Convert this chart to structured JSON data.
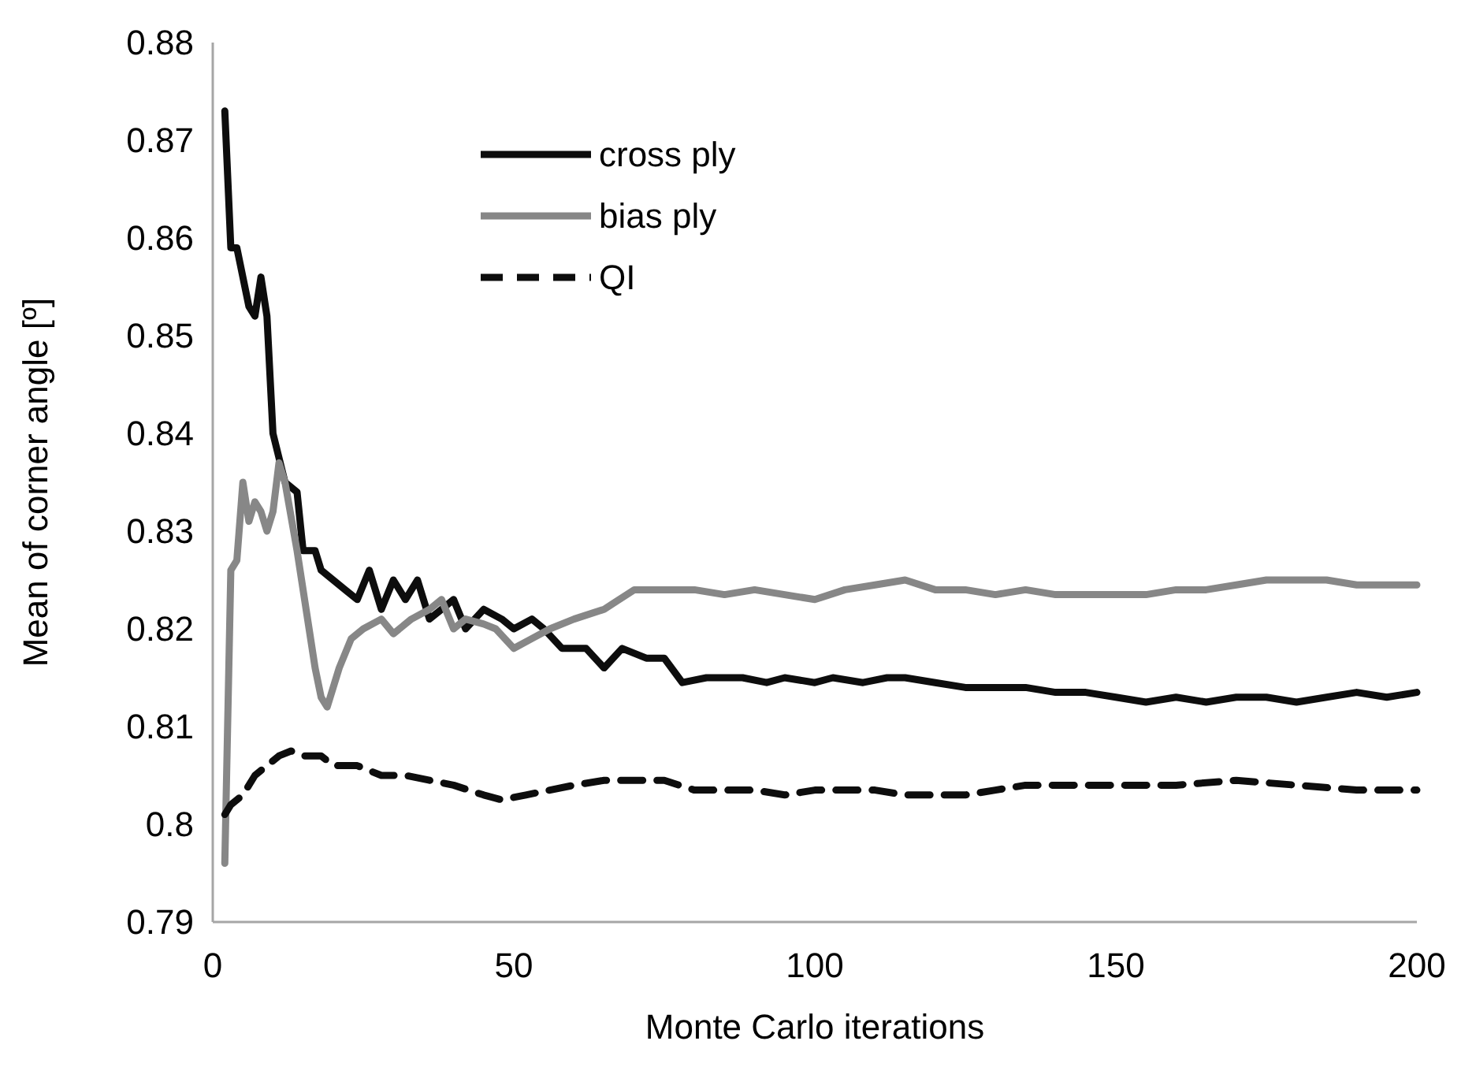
{
  "chart_data": {
    "type": "line",
    "xlabel": "Monte Carlo iterations",
    "ylabel": "Mean of corner angle [º]",
    "xlim": [
      0,
      200
    ],
    "xticks": [
      0,
      50,
      100,
      150,
      200
    ],
    "ylim": [
      0.79,
      0.88
    ],
    "yticks": [
      0.79,
      0.8,
      0.81,
      0.82,
      0.83,
      0.84,
      0.85,
      0.86,
      0.87,
      0.88
    ],
    "grid": false,
    "legend": "top left",
    "series": [
      {
        "name": "cross ply",
        "color": "#0d0d0d",
        "line_style": "solid",
        "x": [
          2,
          3,
          4,
          6,
          7,
          8,
          9,
          10,
          12,
          14,
          15,
          17,
          18,
          20,
          22,
          24,
          26,
          28,
          30,
          32,
          34,
          36,
          38,
          40,
          42,
          45,
          48,
          50,
          53,
          55,
          58,
          62,
          65,
          68,
          72,
          75,
          78,
          82,
          85,
          88,
          92,
          95,
          100,
          103,
          108,
          112,
          115,
          120,
          125,
          130,
          135,
          140,
          145,
          150,
          155,
          160,
          165,
          170,
          175,
          180,
          185,
          190,
          195,
          200
        ],
        "values": [
          0.873,
          0.859,
          0.859,
          0.853,
          0.852,
          0.856,
          0.852,
          0.84,
          0.835,
          0.834,
          0.828,
          0.828,
          0.826,
          0.825,
          0.824,
          0.823,
          0.826,
          0.822,
          0.825,
          0.823,
          0.825,
          0.821,
          0.822,
          0.823,
          0.82,
          0.822,
          0.821,
          0.82,
          0.821,
          0.82,
          0.818,
          0.818,
          0.816,
          0.818,
          0.817,
          0.817,
          0.8145,
          0.815,
          0.815,
          0.815,
          0.8145,
          0.815,
          0.8145,
          0.815,
          0.8145,
          0.815,
          0.815,
          0.8145,
          0.814,
          0.814,
          0.814,
          0.8135,
          0.8135,
          0.813,
          0.8125,
          0.813,
          0.8125,
          0.813,
          0.813,
          0.8125,
          0.813,
          0.8135,
          0.813,
          0.8135
        ]
      },
      {
        "name": "bias ply",
        "color": "#878787",
        "line_style": "solid",
        "x": [
          2,
          3,
          4,
          5,
          6,
          7,
          8,
          9,
          10,
          11,
          12,
          14,
          16,
          17,
          18,
          19,
          21,
          23,
          25,
          28,
          30,
          33,
          36,
          38,
          40,
          42,
          45,
          47,
          50,
          53,
          56,
          60,
          65,
          70,
          75,
          80,
          85,
          90,
          95,
          100,
          105,
          110,
          115,
          120,
          125,
          130,
          135,
          140,
          145,
          150,
          155,
          160,
          165,
          170,
          175,
          180,
          185,
          190,
          195,
          200
        ],
        "values": [
          0.796,
          0.826,
          0.827,
          0.835,
          0.831,
          0.833,
          0.832,
          0.83,
          0.832,
          0.837,
          0.835,
          0.828,
          0.82,
          0.816,
          0.813,
          0.812,
          0.816,
          0.819,
          0.82,
          0.821,
          0.8195,
          0.821,
          0.822,
          0.823,
          0.82,
          0.821,
          0.8205,
          0.82,
          0.818,
          0.819,
          0.82,
          0.821,
          0.822,
          0.824,
          0.824,
          0.824,
          0.8235,
          0.824,
          0.8235,
          0.823,
          0.824,
          0.8245,
          0.825,
          0.824,
          0.824,
          0.8235,
          0.824,
          0.8235,
          0.8235,
          0.8235,
          0.8235,
          0.824,
          0.824,
          0.8245,
          0.825,
          0.825,
          0.825,
          0.8245,
          0.8245,
          0.8245
        ]
      },
      {
        "name": "QI",
        "color": "#0d0d0d",
        "line_style": "dashed",
        "x": [
          2,
          3,
          5,
          7,
          9,
          11,
          13,
          15,
          18,
          20,
          24,
          28,
          32,
          36,
          40,
          45,
          48,
          52,
          56,
          60,
          65,
          70,
          75,
          80,
          85,
          90,
          95,
          100,
          105,
          110,
          115,
          120,
          125,
          130,
          135,
          140,
          150,
          160,
          170,
          180,
          190,
          200
        ],
        "values": [
          0.801,
          0.802,
          0.803,
          0.805,
          0.806,
          0.807,
          0.8075,
          0.807,
          0.807,
          0.806,
          0.806,
          0.805,
          0.805,
          0.8045,
          0.804,
          0.803,
          0.8025,
          0.803,
          0.8035,
          0.804,
          0.8045,
          0.8045,
          0.8045,
          0.8035,
          0.8035,
          0.8035,
          0.803,
          0.8035,
          0.8035,
          0.8035,
          0.803,
          0.803,
          0.803,
          0.8035,
          0.804,
          0.804,
          0.804,
          0.804,
          0.8045,
          0.804,
          0.8035,
          0.8035
        ]
      }
    ]
  }
}
